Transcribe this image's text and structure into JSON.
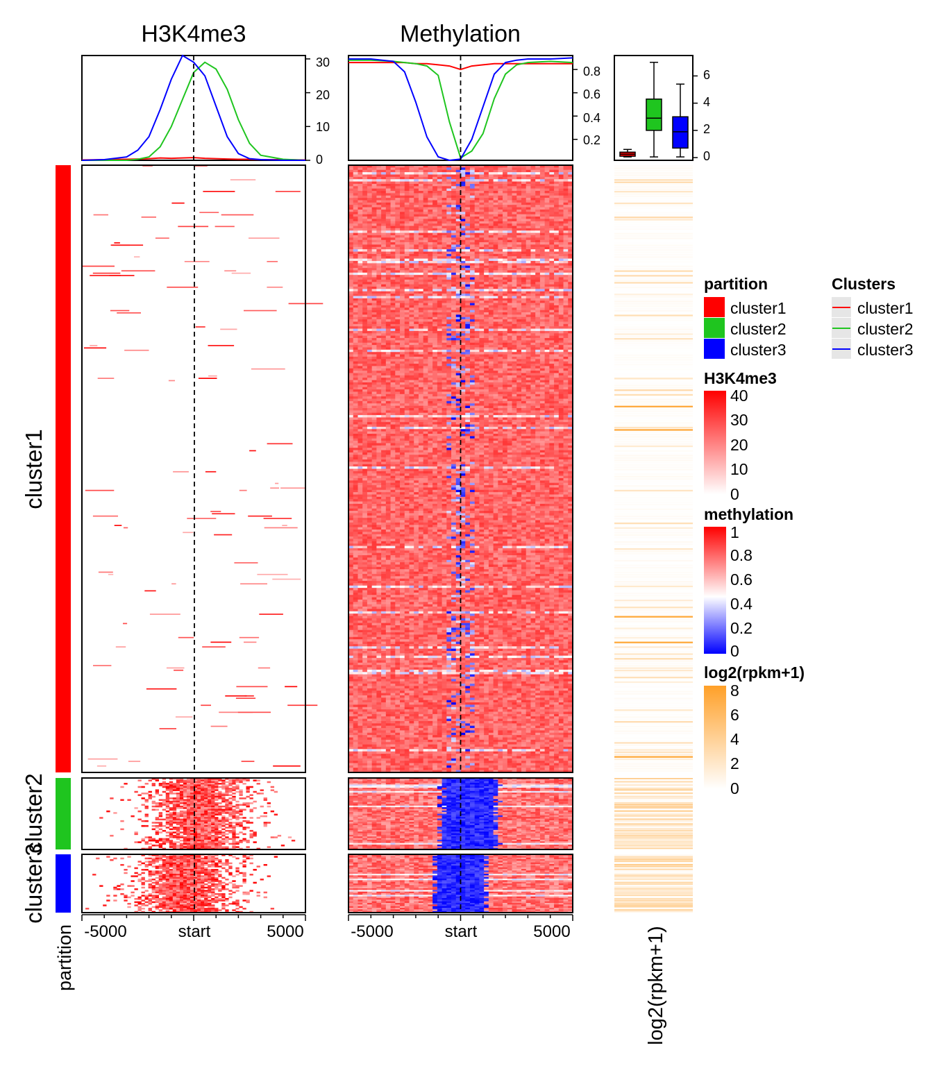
{
  "chart_data": [
    {
      "type": "heatmap",
      "title": "H3K4me3",
      "x_tick_labels": [
        "-5000",
        "start",
        "5000"
      ],
      "x_range": [
        -5000,
        5000
      ],
      "legend": {
        "title": "H3K4me3",
        "ticks": [
          "40",
          "30",
          "20",
          "10",
          "0"
        ],
        "range": [
          0,
          40
        ],
        "colors": [
          "#ffffff",
          "#ff0000"
        ]
      },
      "profile": {
        "type": "line",
        "y_range": [
          0,
          31
        ],
        "y_ticks": [
          "30",
          "20",
          "10",
          "0"
        ],
        "x": [
          -5000,
          -4000,
          -3000,
          -2500,
          -2000,
          -1500,
          -1000,
          -500,
          0,
          500,
          1000,
          1500,
          2000,
          2500,
          3000,
          4000,
          5000
        ],
        "series": [
          {
            "name": "cluster1",
            "color": "#ff0000",
            "values": [
              0.1,
              0.2,
              0.3,
              0.4,
              0.5,
              0.7,
              0.6,
              0.7,
              0.8,
              0.6,
              0.5,
              0.4,
              0.3,
              0.3,
              0.2,
              0.2,
              0.1
            ]
          },
          {
            "name": "cluster2",
            "color": "#1fc51f",
            "values": [
              0,
              0,
              0,
              0.3,
              1,
              4,
              10,
              18,
              26,
              29,
              27,
              21,
              12,
              5,
              1.5,
              0.3,
              0
            ]
          },
          {
            "name": "cluster3",
            "color": "#0000ff",
            "values": [
              0,
              0.2,
              1,
              3,
              7,
              15,
              24,
              31,
              29,
              25,
              16,
              7,
              2,
              0.5,
              0.2,
              0,
              0
            ]
          }
        ]
      }
    },
    {
      "type": "heatmap",
      "title": "Methylation",
      "x_tick_labels": [
        "-5000",
        "start",
        "5000"
      ],
      "x_range": [
        -5000,
        5000
      ],
      "legend": {
        "title": "methylation",
        "ticks": [
          "1",
          "0.8",
          "0.6",
          "0.4",
          "0.2",
          "0"
        ],
        "range": [
          0,
          1
        ],
        "colors": [
          "#0000ff",
          "#ffffff",
          "#ff0000"
        ]
      },
      "profile": {
        "type": "line",
        "y_range": [
          0.02,
          0.92
        ],
        "y_ticks": [
          "0.8",
          "0.6",
          "0.4",
          "0.2"
        ],
        "x": [
          -5000,
          -4000,
          -3000,
          -2500,
          -2000,
          -1500,
          -1000,
          -500,
          0,
          500,
          1000,
          1500,
          2000,
          2500,
          3000,
          4000,
          5000
        ],
        "series": [
          {
            "name": "cluster1",
            "color": "#ff0000",
            "values": [
              0.86,
              0.86,
              0.86,
              0.86,
              0.85,
              0.85,
              0.84,
              0.83,
              0.8,
              0.83,
              0.84,
              0.85,
              0.85,
              0.85,
              0.85,
              0.85,
              0.85
            ]
          },
          {
            "name": "cluster2",
            "color": "#1fc51f",
            "values": [
              0.88,
              0.88,
              0.87,
              0.86,
              0.85,
              0.83,
              0.75,
              0.35,
              0.04,
              0.1,
              0.25,
              0.55,
              0.76,
              0.84,
              0.86,
              0.87,
              0.86
            ]
          },
          {
            "name": "cluster3",
            "color": "#0000ff",
            "values": [
              0.89,
              0.89,
              0.87,
              0.78,
              0.52,
              0.22,
              0.05,
              0.02,
              0.03,
              0.2,
              0.48,
              0.76,
              0.86,
              0.88,
              0.89,
              0.89,
              0.9
            ]
          }
        ]
      }
    },
    {
      "type": "heatmap",
      "title": "log2(rpkm+1)",
      "legend": {
        "title": "log2(rpkm+1)",
        "ticks": [
          "8",
          "6",
          "4",
          "2",
          "0"
        ],
        "range": [
          0,
          8
        ],
        "colors": [
          "#ffffff",
          "#ffa028"
        ]
      },
      "boxplot": {
        "y_range": [
          -0.2,
          7.5
        ],
        "y_ticks": [
          "6",
          "4",
          "2",
          "0"
        ],
        "series": [
          {
            "name": "cluster1",
            "color": "#ff0000",
            "min": 0.05,
            "q1": 0.1,
            "median": 0.25,
            "q3": 0.4,
            "max": 0.6
          },
          {
            "name": "cluster2",
            "color": "#1fc51f",
            "min": 0.05,
            "q1": 2.0,
            "median": 2.9,
            "q3": 4.3,
            "max": 7.0
          },
          {
            "name": "cluster3",
            "color": "#0000ff",
            "min": 0.05,
            "q1": 0.7,
            "median": 1.9,
            "q3": 3.0,
            "max": 5.4
          }
        ]
      }
    }
  ],
  "partition": {
    "label": "partition",
    "legend_title": "partition",
    "clusters": [
      {
        "name": "cluster1",
        "color": "#ff0000"
      },
      {
        "name": "cluster2",
        "color": "#1fc51f"
      },
      {
        "name": "cluster3",
        "color": "#0000ff"
      }
    ]
  },
  "clusters_legend": {
    "title": "Clusters",
    "entries": [
      {
        "name": "cluster1",
        "color": "#ff0000"
      },
      {
        "name": "cluster2",
        "color": "#1fc51f"
      },
      {
        "name": "cluster3",
        "color": "#0000ff"
      }
    ]
  }
}
